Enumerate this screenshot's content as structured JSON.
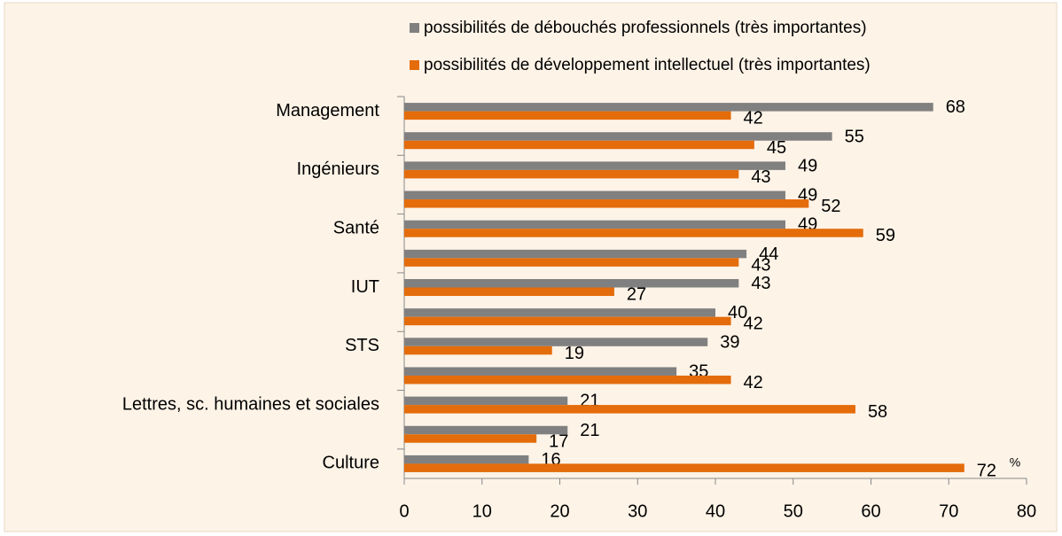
{
  "chart_data": {
    "type": "bar",
    "orientation": "horizontal",
    "categories": [
      "Management",
      null,
      "Ingénieurs",
      null,
      "Santé",
      null,
      "IUT",
      null,
      "STS",
      null,
      "Lettres, sc. humaines et sociales",
      null,
      "Culture"
    ],
    "series": [
      {
        "name": "possibilités de débouchés professionnels (très importantes)",
        "color": "#808080",
        "values": [
          68,
          55,
          49,
          49,
          49,
          44,
          43,
          40,
          39,
          35,
          21,
          21,
          16
        ]
      },
      {
        "name": "possibilités de développement intellectuel (très importantes)",
        "color": "#e46c0a",
        "values": [
          42,
          45,
          43,
          52,
          59,
          43,
          27,
          42,
          19,
          42,
          58,
          17,
          72
        ]
      }
    ],
    "x_label": "%",
    "xlim": [
      0,
      80
    ],
    "xticks": [
      0,
      10,
      20,
      30,
      40,
      50,
      60,
      70,
      80
    ],
    "grid": false,
    "legend": "top"
  }
}
